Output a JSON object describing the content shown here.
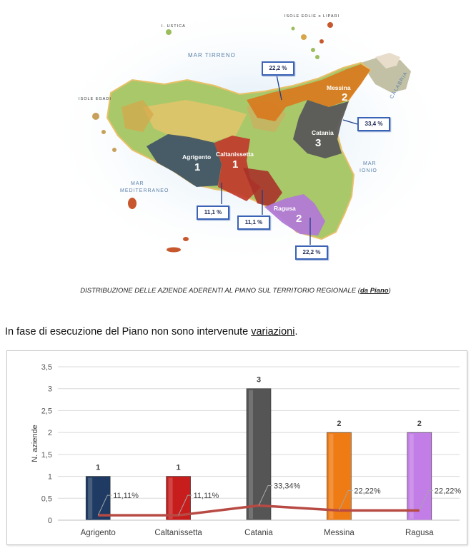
{
  "map": {
    "seas": {
      "tirreno": "MAR TIRRENO",
      "mediterraneo_1": "MAR",
      "mediterraneo_2": "MEDITERRANEO",
      "ionio_1": "MAR",
      "ionio_2": "IONIO",
      "calabria": "CALABRIA"
    },
    "islands": {
      "eolie": "ISOLE EOLIE o LIPARI",
      "egadi": "ISOLE EGADI",
      "ustica": "I. USTICA"
    },
    "provinces": [
      {
        "name": "Agrigento",
        "count": "1",
        "pct": "11,1 %",
        "color": "#3f5466"
      },
      {
        "name": "Caltanissetta",
        "count": "1",
        "pct": "11,1 %",
        "color": "#c0392b"
      },
      {
        "name": "Catania",
        "count": "3",
        "pct": "33,4 %",
        "color": "#5c5c5c"
      },
      {
        "name": "Messina",
        "count": "2",
        "pct": "22,2 %",
        "color": "#d9791e"
      },
      {
        "name": "Ragusa",
        "count": "2",
        "pct": "22,2 %",
        "color": "#b17ad6"
      }
    ],
    "caption_main": "DISTRIBUZIONE DELLE AZIENDE ADERENTI AL PIANO SUL TERRITORIO REGIONALE",
    "caption_ref": "da Piano"
  },
  "note": {
    "text": "In fase di esecuzione del Piano non sono intervenute",
    "link": "variazioni",
    "end": "."
  },
  "chart_data": {
    "type": "bar",
    "categories": [
      "Agrigento",
      "Caltanissetta",
      "Catania",
      "Messina",
      "Ragusa"
    ],
    "series": [
      {
        "values": [
          1,
          1,
          3,
          2,
          2
        ]
      },
      {
        "values": [
          11.11,
          11.11,
          33.34,
          22.22,
          22.22
        ]
      }
    ],
    "data_labels": [
      "1",
      "1",
      "3",
      "2",
      "2"
    ],
    "pct_labels": [
      "11,11%",
      "11,11%",
      "33,34%",
      "22,22%",
      "22,22%"
    ],
    "bar_colors": [
      "#1f3b63",
      "#c81d1d",
      "#555555",
      "#ef7b14",
      "#c27de6"
    ],
    "line_color": "#b84a44",
    "ylabel": "N. aziende",
    "xlabel": "",
    "ylim": [
      0,
      3.5
    ],
    "yticks": [
      "0",
      "0,5",
      "1",
      "1,5",
      "2",
      "2,5",
      "3",
      "3,5"
    ],
    "grid": true
  }
}
